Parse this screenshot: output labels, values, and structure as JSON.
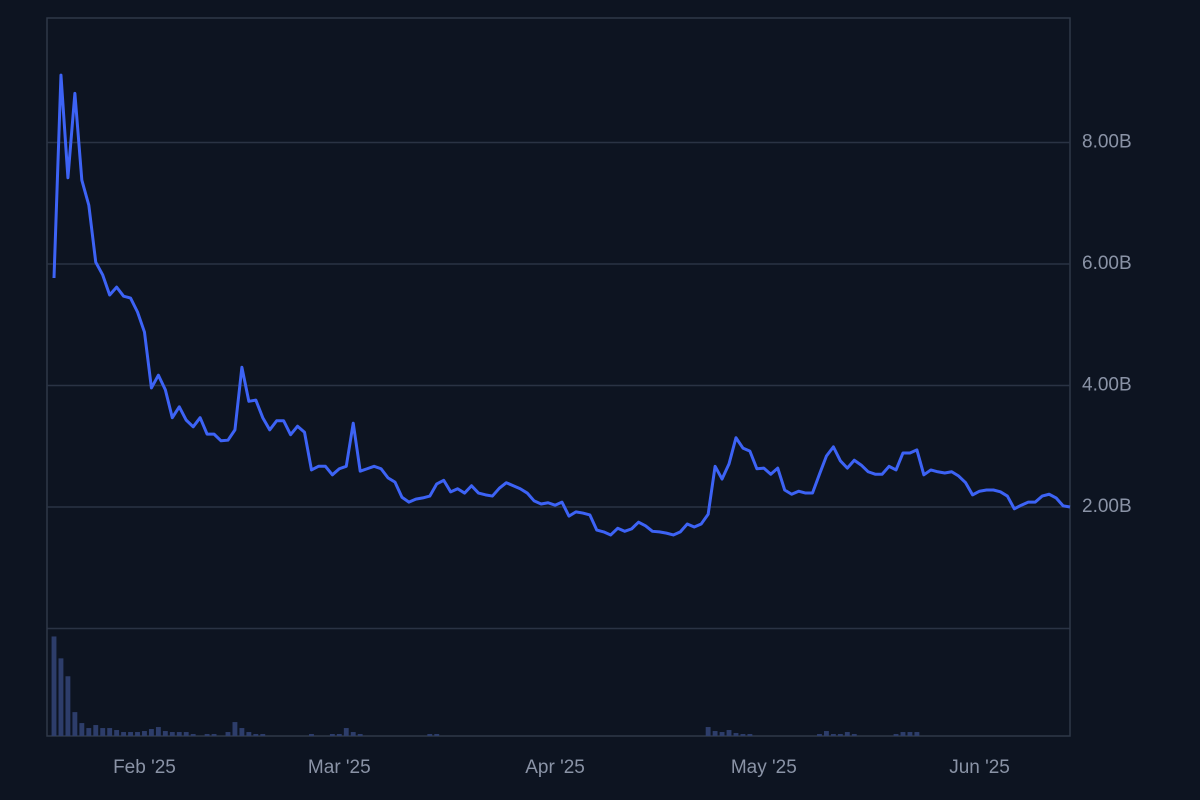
{
  "chart_data": {
    "type": "line",
    "xlim": [
      0,
      146
    ],
    "xticks": [
      {
        "value": 13,
        "label": "Feb '25"
      },
      {
        "value": 41,
        "label": "Mar '25"
      },
      {
        "value": 72,
        "label": "Apr '25"
      },
      {
        "value": 102,
        "label": "May '25"
      },
      {
        "value": 133,
        "label": "Jun '25"
      }
    ],
    "ylim": [
      0,
      10.05
    ],
    "yticks": [
      {
        "value": 2,
        "label": "2.00B"
      },
      {
        "value": 4,
        "label": "4.00B"
      },
      {
        "value": 6,
        "label": "6.00B"
      },
      {
        "value": 8,
        "label": "8.00B"
      }
    ],
    "y2lim": [
      0,
      108
    ],
    "grid": true,
    "series": [
      {
        "color": "#3d63f5",
        "values": [
          5.77,
          9.11,
          7.42,
          8.81,
          7.38,
          6.97,
          6.03,
          5.82,
          5.49,
          5.62,
          5.47,
          5.44,
          5.21,
          4.88,
          3.96,
          4.17,
          3.93,
          3.47,
          3.65,
          3.43,
          3.32,
          3.47,
          3.2,
          3.2,
          3.09,
          3.1,
          3.27,
          4.3,
          3.74,
          3.76,
          3.47,
          3.27,
          3.42,
          3.42,
          3.19,
          3.33,
          3.23,
          2.61,
          2.67,
          2.67,
          2.53,
          2.63,
          2.67,
          3.38,
          2.59,
          2.63,
          2.67,
          2.63,
          2.48,
          2.41,
          2.16,
          2.08,
          2.13,
          2.15,
          2.18,
          2.38,
          2.44,
          2.25,
          2.3,
          2.23,
          2.35,
          2.23,
          2.2,
          2.18,
          2.31,
          2.4,
          2.35,
          2.3,
          2.23,
          2.1,
          2.05,
          2.07,
          2.03,
          2.08,
          1.85,
          1.92,
          1.9,
          1.87,
          1.62,
          1.59,
          1.54,
          1.65,
          1.6,
          1.64,
          1.75,
          1.69,
          1.6,
          1.59,
          1.57,
          1.54,
          1.59,
          1.72,
          1.67,
          1.72,
          1.88,
          2.67,
          2.46,
          2.71,
          3.14,
          2.97,
          2.92,
          2.63,
          2.64,
          2.54,
          2.64,
          2.28,
          2.21,
          2.26,
          2.23,
          2.23,
          2.54,
          2.84,
          2.99,
          2.76,
          2.64,
          2.77,
          2.69,
          2.58,
          2.54,
          2.54,
          2.67,
          2.61,
          2.89,
          2.89,
          2.94,
          2.53,
          2.61,
          2.58,
          2.56,
          2.58,
          2.51,
          2.4,
          2.2,
          2.26,
          2.28,
          2.28,
          2.25,
          2.18,
          1.97,
          2.03,
          2.08,
          2.08,
          2.18,
          2.21,
          2.15,
          2.02,
          2.0
        ]
      },
      {
        "color": "#2d3d6a",
        "axis": "y2",
        "type": "bar",
        "values": [
          100,
          78,
          60,
          24,
          13,
          8,
          11,
          8,
          8,
          6,
          4,
          4,
          4,
          5,
          7,
          9,
          5,
          4,
          4,
          4,
          2,
          0,
          2,
          2,
          0,
          4,
          14,
          8,
          4,
          2,
          2,
          0,
          0,
          0,
          0,
          0,
          0,
          2,
          0,
          0,
          2,
          2,
          8,
          4,
          2,
          0,
          0,
          0,
          0,
          0,
          0,
          0,
          0,
          0,
          2,
          2,
          0,
          0,
          0,
          0,
          0,
          0,
          0,
          0,
          0,
          0,
          0,
          0,
          0,
          0,
          0,
          0,
          0,
          0,
          0,
          0,
          0,
          0,
          0,
          0,
          0,
          0,
          0,
          0,
          0,
          0,
          0,
          0,
          0,
          0,
          0,
          0,
          0,
          0,
          9,
          5,
          4,
          6,
          3,
          2,
          2,
          0,
          0,
          0,
          0,
          0,
          0,
          0,
          0,
          0,
          2,
          5,
          2,
          2,
          4,
          2,
          0,
          0,
          0,
          0,
          0,
          2,
          4,
          4,
          4,
          0,
          0,
          0,
          0,
          0,
          0,
          0,
          0,
          0,
          0,
          0,
          0,
          0,
          0,
          0,
          0,
          0,
          0,
          0,
          0,
          0,
          0
        ]
      }
    ]
  }
}
